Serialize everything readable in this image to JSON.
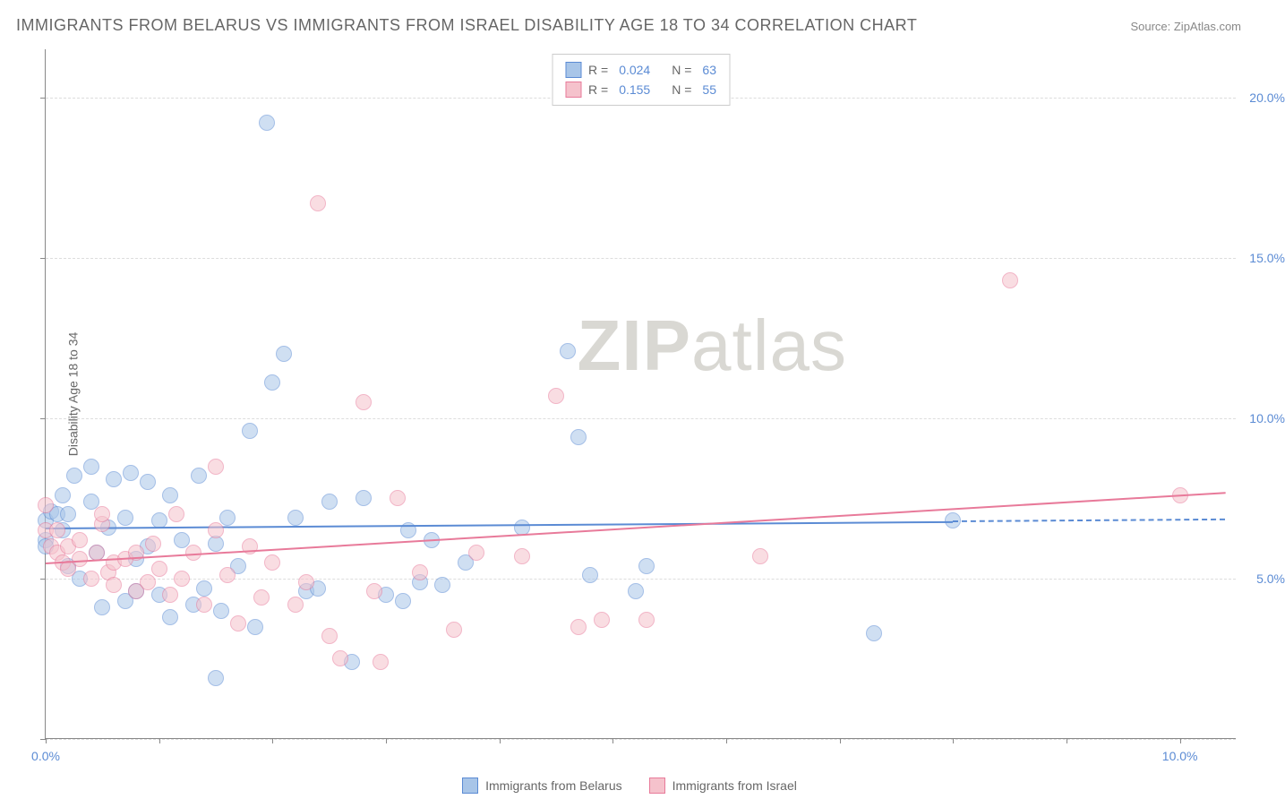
{
  "title": "IMMIGRANTS FROM BELARUS VS IMMIGRANTS FROM ISRAEL DISABILITY AGE 18 TO 34 CORRELATION CHART",
  "source_label": "Source: ZipAtlas.com",
  "y_axis_title": "Disability Age 18 to 34",
  "watermark": {
    "bold": "ZIP",
    "light": "atlas"
  },
  "chart": {
    "type": "scatter",
    "xlim": [
      0,
      10.5
    ],
    "ylim": [
      0,
      21.5
    ],
    "x_ticks": [
      0,
      1,
      2,
      3,
      4,
      5,
      6,
      7,
      8,
      9,
      10
    ],
    "x_tick_labels": {
      "0": "0.0%",
      "10": "10.0%"
    },
    "y_gridlines": [
      0,
      5,
      10,
      15,
      20
    ],
    "y_tick_labels": {
      "5": "5.0%",
      "10": "10.0%",
      "15": "15.0%",
      "20": "20.0%"
    },
    "background_color": "#ffffff",
    "grid_color": "#dddddd",
    "axis_color": "#888888",
    "label_color": "#5b8bd4",
    "point_radius": 9,
    "point_opacity": 0.55,
    "series": [
      {
        "name": "Immigrants from Belarus",
        "color_fill": "#a8c5e8",
        "color_stroke": "#5b8bd4",
        "r_value": "0.024",
        "n_value": "63",
        "trend": {
          "x1": 0,
          "y1": 6.6,
          "x2": 8,
          "y2": 6.8,
          "x_dash_to": 10.4
        },
        "points": [
          [
            0.0,
            6.8
          ],
          [
            0.0,
            6.2
          ],
          [
            0.0,
            6.0
          ],
          [
            0.05,
            7.1
          ],
          [
            0.1,
            7.0
          ],
          [
            0.15,
            7.6
          ],
          [
            0.15,
            6.5
          ],
          [
            0.2,
            5.4
          ],
          [
            0.2,
            7.0
          ],
          [
            0.25,
            8.2
          ],
          [
            0.3,
            5.0
          ],
          [
            0.4,
            7.4
          ],
          [
            0.4,
            8.5
          ],
          [
            0.45,
            5.8
          ],
          [
            0.5,
            4.1
          ],
          [
            0.55,
            6.6
          ],
          [
            0.6,
            8.1
          ],
          [
            0.7,
            6.9
          ],
          [
            0.7,
            4.3
          ],
          [
            0.75,
            8.3
          ],
          [
            0.8,
            5.6
          ],
          [
            0.8,
            4.6
          ],
          [
            0.9,
            6.0
          ],
          [
            0.9,
            8.0
          ],
          [
            1.0,
            6.8
          ],
          [
            1.0,
            4.5
          ],
          [
            1.1,
            7.6
          ],
          [
            1.1,
            3.8
          ],
          [
            1.2,
            6.2
          ],
          [
            1.3,
            4.2
          ],
          [
            1.35,
            8.2
          ],
          [
            1.4,
            4.7
          ],
          [
            1.5,
            6.1
          ],
          [
            1.5,
            1.9
          ],
          [
            1.55,
            4.0
          ],
          [
            1.6,
            6.9
          ],
          [
            1.7,
            5.4
          ],
          [
            1.8,
            9.6
          ],
          [
            1.85,
            3.5
          ],
          [
            1.95,
            19.2
          ],
          [
            2.0,
            11.1
          ],
          [
            2.1,
            12.0
          ],
          [
            2.2,
            6.9
          ],
          [
            2.3,
            4.6
          ],
          [
            2.4,
            4.7
          ],
          [
            2.5,
            7.4
          ],
          [
            2.7,
            2.4
          ],
          [
            2.8,
            7.5
          ],
          [
            3.0,
            4.5
          ],
          [
            3.15,
            4.3
          ],
          [
            3.2,
            6.5
          ],
          [
            3.3,
            4.9
          ],
          [
            3.4,
            6.2
          ],
          [
            3.5,
            4.8
          ],
          [
            3.7,
            5.5
          ],
          [
            4.2,
            6.6
          ],
          [
            4.6,
            12.1
          ],
          [
            4.7,
            9.4
          ],
          [
            4.8,
            5.1
          ],
          [
            5.2,
            4.6
          ],
          [
            5.3,
            5.4
          ],
          [
            7.3,
            3.3
          ],
          [
            8.0,
            6.8
          ]
        ]
      },
      {
        "name": "Immigrants from Israel",
        "color_fill": "#f5c2cc",
        "color_stroke": "#e87a9a",
        "r_value": "0.155",
        "n_value": "55",
        "trend": {
          "x1": 0,
          "y1": 5.5,
          "x2": 10.4,
          "y2": 7.7
        },
        "points": [
          [
            0.0,
            6.5
          ],
          [
            0.0,
            7.3
          ],
          [
            0.05,
            6.0
          ],
          [
            0.1,
            5.8
          ],
          [
            0.1,
            6.5
          ],
          [
            0.15,
            5.5
          ],
          [
            0.2,
            6.0
          ],
          [
            0.2,
            5.3
          ],
          [
            0.3,
            5.6
          ],
          [
            0.3,
            6.2
          ],
          [
            0.4,
            5.0
          ],
          [
            0.45,
            5.8
          ],
          [
            0.5,
            6.7
          ],
          [
            0.5,
            7.0
          ],
          [
            0.55,
            5.2
          ],
          [
            0.6,
            5.5
          ],
          [
            0.6,
            4.8
          ],
          [
            0.7,
            5.6
          ],
          [
            0.8,
            4.6
          ],
          [
            0.8,
            5.8
          ],
          [
            0.9,
            4.9
          ],
          [
            0.95,
            6.1
          ],
          [
            1.0,
            5.3
          ],
          [
            1.1,
            4.5
          ],
          [
            1.15,
            7.0
          ],
          [
            1.2,
            5.0
          ],
          [
            1.3,
            5.8
          ],
          [
            1.4,
            4.2
          ],
          [
            1.5,
            6.5
          ],
          [
            1.5,
            8.5
          ],
          [
            1.6,
            5.1
          ],
          [
            1.7,
            3.6
          ],
          [
            1.8,
            6.0
          ],
          [
            1.9,
            4.4
          ],
          [
            2.0,
            5.5
          ],
          [
            2.2,
            4.2
          ],
          [
            2.3,
            4.9
          ],
          [
            2.4,
            16.7
          ],
          [
            2.5,
            3.2
          ],
          [
            2.6,
            2.5
          ],
          [
            2.8,
            10.5
          ],
          [
            2.9,
            4.6
          ],
          [
            2.95,
            2.4
          ],
          [
            3.1,
            7.5
          ],
          [
            3.3,
            5.2
          ],
          [
            3.6,
            3.4
          ],
          [
            3.8,
            5.8
          ],
          [
            4.2,
            5.7
          ],
          [
            4.5,
            10.7
          ],
          [
            4.7,
            3.5
          ],
          [
            4.9,
            3.7
          ],
          [
            5.3,
            3.7
          ],
          [
            6.3,
            5.7
          ],
          [
            8.5,
            14.3
          ],
          [
            10.0,
            7.6
          ]
        ]
      }
    ]
  },
  "legend_top": {
    "r_label": "R =",
    "n_label": "N ="
  },
  "legend_bottom_labels": [
    "Immigrants from Belarus",
    "Immigrants from Israel"
  ]
}
